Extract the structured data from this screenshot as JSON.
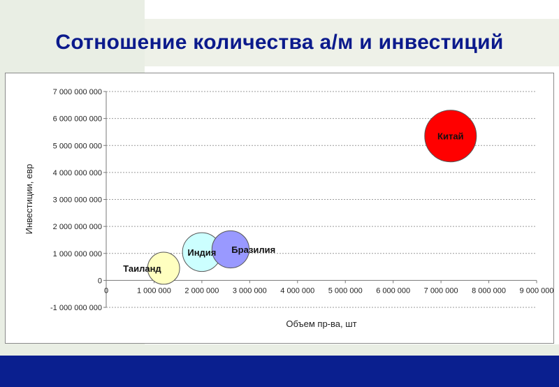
{
  "slide": {
    "title": "Сотношение количества а/м и инвестиций"
  },
  "colors": {
    "title": "#0b1a8c",
    "footer": "#0a1f8f",
    "background_tint": "#e9eee4"
  },
  "chart_data": {
    "type": "bubble",
    "title": "",
    "xlabel": "Объем пр-ва, шт",
    "ylabel": "Инвестиции, евр",
    "xlim": [
      0,
      9000000
    ],
    "ylim": [
      -1000000000,
      7000000000
    ],
    "x_ticks": [
      0,
      1000000,
      2000000,
      3000000,
      4000000,
      5000000,
      6000000,
      7000000,
      8000000,
      9000000
    ],
    "x_tick_labels": [
      "0",
      "1 000 000",
      "2 000 000",
      "3 000 000",
      "4 000 000",
      "5 000 000",
      "6 000 000",
      "7 000 000",
      "8 000 000",
      "9 000 000"
    ],
    "y_ticks": [
      -1000000000,
      0,
      1000000000,
      2000000000,
      3000000000,
      4000000000,
      5000000000,
      6000000000,
      7000000000
    ],
    "y_tick_labels": [
      "-1 000 000 000",
      "0",
      "1 000 000 000",
      "2 000 000 000",
      "3 000 000 000",
      "4 000 000 000",
      "5 000 000 000",
      "6 000 000 000",
      "7 000 000 000"
    ],
    "grid": true,
    "points": [
      {
        "label": "Таиланд",
        "x": 1200000,
        "y": 450000000,
        "size": 0.62,
        "color": "#ffffc0",
        "label_position": "left"
      },
      {
        "label": "Индия",
        "x": 2000000,
        "y": 1050000000,
        "size": 0.75,
        "color": "#ccffff",
        "label_position": "center"
      },
      {
        "label": "Бразилия",
        "x": 2600000,
        "y": 1150000000,
        "size": 0.72,
        "color": "#9999ff",
        "label_position": "right"
      },
      {
        "label": "Китай",
        "x": 7200000,
        "y": 5350000000,
        "size": 1.0,
        "color": "#ff0000",
        "label_position": "center"
      }
    ]
  }
}
